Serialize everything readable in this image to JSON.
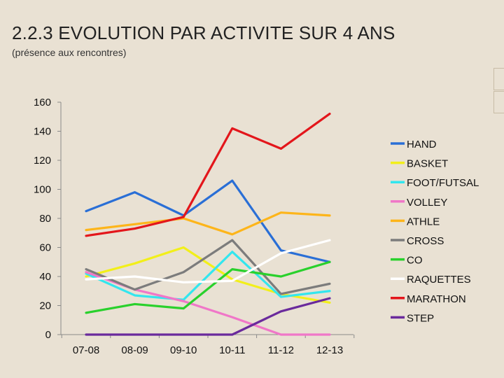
{
  "slide": {
    "title": "2.2.3 EVOLUTION PAR ACTIVITE SUR 4 ANS",
    "subtitle": "(présence aux rencontres)"
  },
  "chart_data": {
    "type": "line",
    "categories": [
      "07-08",
      "08-09",
      "09-10",
      "10-11",
      "11-12",
      "12-13"
    ],
    "ylim": [
      0,
      160
    ],
    "yticks": [
      0,
      20,
      40,
      60,
      80,
      100,
      120,
      140,
      160
    ],
    "grid": false,
    "legend_position": "right",
    "series": [
      {
        "name": "HAND",
        "color": "#2a6fd6",
        "values": [
          85,
          98,
          82,
          106,
          58,
          50
        ]
      },
      {
        "name": "BASKET",
        "color": "#f2ef1a",
        "values": [
          40,
          49,
          60,
          38,
          28,
          22
        ]
      },
      {
        "name": "FOOT/FUTSAL",
        "color": "#33e6ee",
        "values": [
          42,
          27,
          24,
          57,
          26,
          30
        ]
      },
      {
        "name": "VOLLEY",
        "color": "#f077c8",
        "values": [
          43,
          31,
          23,
          12,
          0,
          0
        ]
      },
      {
        "name": "ATHLE",
        "color": "#fdb51a",
        "values": [
          72,
          76,
          80,
          69,
          84,
          82
        ]
      },
      {
        "name": "CROSS",
        "color": "#7c7c7c",
        "values": [
          45,
          31,
          43,
          65,
          28,
          35
        ]
      },
      {
        "name": "CO",
        "color": "#29d12c",
        "values": [
          15,
          21,
          18,
          45,
          40,
          50
        ]
      },
      {
        "name": "RAQUETTES",
        "color": "#ffffff",
        "values": [
          38,
          40,
          36,
          37,
          56,
          65
        ]
      },
      {
        "name": "MARATHON",
        "color": "#e3161b",
        "values": [
          68,
          73,
          81,
          142,
          128,
          152
        ]
      },
      {
        "name": "STEP",
        "color": "#6a2a9c",
        "values": [
          0,
          0,
          0,
          0,
          16,
          25
        ]
      }
    ]
  }
}
